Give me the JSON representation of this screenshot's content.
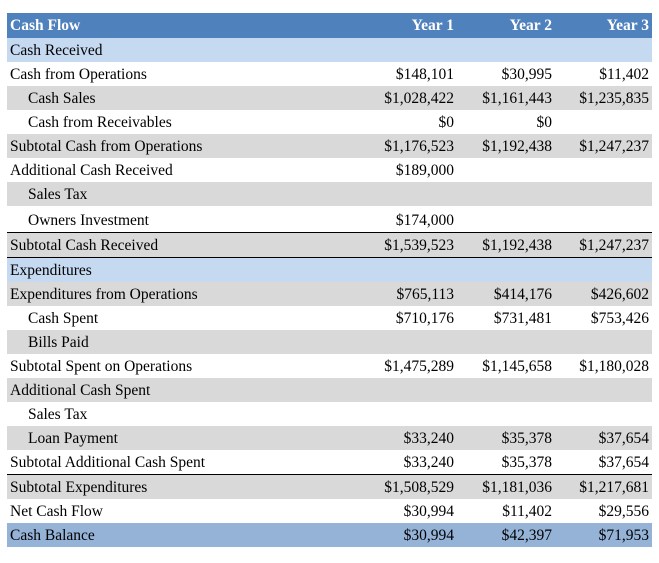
{
  "header": {
    "title": "Cash Flow",
    "years": [
      "Year 1",
      "Year 2",
      "Year 3"
    ]
  },
  "rows": [
    {
      "label": "Cash Received",
      "values": [
        "",
        "",
        ""
      ]
    },
    {
      "label": "Cash from Operations",
      "values": [
        "$148,101",
        "$30,995",
        "$11,402"
      ]
    },
    {
      "label": "Cash Sales",
      "values": [
        "$1,028,422",
        "$1,161,443",
        "$1,235,835"
      ]
    },
    {
      "label": "Cash from Receivables",
      "values": [
        "$0",
        "$0",
        ""
      ]
    },
    {
      "label": "Subtotal Cash from Operations",
      "values": [
        "$1,176,523",
        "$1,192,438",
        "$1,247,237"
      ]
    },
    {
      "label": "Additional Cash Received",
      "values": [
        "$189,000",
        "",
        ""
      ]
    },
    {
      "label": "Sales Tax",
      "values": [
        "",
        "",
        ""
      ]
    },
    {
      "label": "Owners Investment",
      "values": [
        "$174,000",
        "",
        ""
      ]
    },
    {
      "label": "Subtotal Cash Received",
      "values": [
        "$1,539,523",
        "$1,192,438",
        "$1,247,237"
      ]
    },
    {
      "label": "Expenditures",
      "values": [
        "",
        "",
        ""
      ]
    },
    {
      "label": "Expenditures from Operations",
      "values": [
        "$765,113",
        "$414,176",
        "$426,602"
      ]
    },
    {
      "label": "Cash Spent",
      "values": [
        "$710,176",
        "$731,481",
        "$753,426"
      ]
    },
    {
      "label": "Bills Paid",
      "values": [
        "",
        "",
        ""
      ]
    },
    {
      "label": "Subtotal Spent on Operations",
      "values": [
        "$1,475,289",
        "$1,145,658",
        "$1,180,028"
      ]
    },
    {
      "label": "Additional Cash Spent",
      "values": [
        "",
        "",
        ""
      ]
    },
    {
      "label": "Sales Tax",
      "values": [
        "",
        "",
        ""
      ]
    },
    {
      "label": "Loan Payment",
      "values": [
        "$33,240",
        "$35,378",
        "$37,654"
      ]
    },
    {
      "label": "Subtotal Additional Cash Spent",
      "values": [
        "$33,240",
        "$35,378",
        "$37,654"
      ]
    },
    {
      "label": "Subtotal Expenditures",
      "values": [
        "$1,508,529",
        "$1,181,036",
        "$1,217,681"
      ]
    },
    {
      "label": "Net Cash Flow",
      "values": [
        "$30,994",
        "$11,402",
        "$29,556"
      ]
    },
    {
      "label": "Cash Balance",
      "values": [
        "$30,994",
        "$42,397",
        "$71,953"
      ]
    }
  ],
  "colors": {
    "header": "#4f81bd",
    "section": "#c5d9f1",
    "shade": "#d9d9d9",
    "final": "#95b3d7"
  }
}
